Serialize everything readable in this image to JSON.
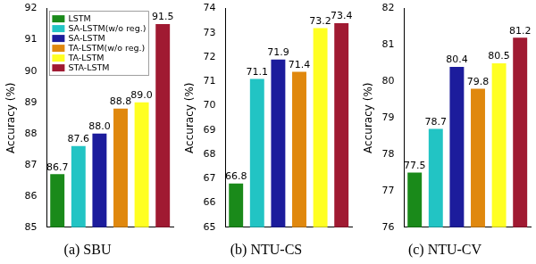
{
  "chart_data": [
    {
      "type": "bar",
      "title": "(a) SBU",
      "ylabel": "Accuracy (%)",
      "categories": [
        "LSTM",
        "SA-LSTM(w/o reg.)",
        "SA-LSTM",
        "TA-LSTM(w/o reg.)",
        "TA-LSTM",
        "STA-LSTM"
      ],
      "values": [
        86.7,
        87.6,
        88.0,
        88.8,
        89.0,
        91.5
      ],
      "value_labels": [
        "86.7",
        "87.6",
        "88.0",
        "88.8",
        "89.0",
        "91.5"
      ],
      "colors": [
        "#1a8a1a",
        "#22c4c4",
        "#1c1c9c",
        "#e0880e",
        "#ffff22",
        "#a01a32"
      ],
      "ylim": [
        85,
        92
      ],
      "yticks": [
        85,
        86,
        87,
        88,
        89,
        90,
        91,
        92
      ],
      "grid": false,
      "data_labels": true,
      "tick_labels": "y",
      "legend": "upper left"
    },
    {
      "type": "bar",
      "title": "(b) NTU-CS",
      "ylabel": "Accuracy (%)",
      "categories": [
        "LSTM",
        "SA-LSTM(w/o reg.)",
        "SA-LSTM",
        "TA-LSTM(w/o reg.)",
        "TA-LSTM",
        "STA-LSTM"
      ],
      "values": [
        66.8,
        71.1,
        71.9,
        71.4,
        73.2,
        73.4
      ],
      "value_labels": [
        "66.8",
        "71.1",
        "71.9",
        "71.4",
        "73.2",
        "73.4"
      ],
      "colors": [
        "#1a8a1a",
        "#22c4c4",
        "#1c1c9c",
        "#e0880e",
        "#ffff22",
        "#a01a32"
      ],
      "ylim": [
        65,
        74
      ],
      "yticks": [
        65,
        66,
        67,
        68,
        69,
        70,
        71,
        72,
        73,
        74
      ],
      "grid": false,
      "data_labels": true,
      "tick_labels": "y"
    },
    {
      "type": "bar",
      "title": "(c) NTU-CV",
      "ylabel": "Accuracy (%)",
      "categories": [
        "LSTM",
        "SA-LSTM(w/o reg.)",
        "SA-LSTM",
        "TA-LSTM(w/o reg.)",
        "TA-LSTM",
        "STA-LSTM"
      ],
      "values": [
        77.5,
        78.7,
        80.4,
        79.8,
        80.5,
        81.2
      ],
      "value_labels": [
        "77.5",
        "78.7",
        "80.4",
        "79.8",
        "80.5",
        "81.2"
      ],
      "colors": [
        "#1a8a1a",
        "#22c4c4",
        "#1c1c9c",
        "#e0880e",
        "#ffff22",
        "#a01a32"
      ],
      "ylim": [
        76,
        82
      ],
      "yticks": [
        76,
        77,
        78,
        79,
        80,
        81,
        82
      ],
      "grid": false,
      "data_labels": true,
      "tick_labels": "y"
    }
  ]
}
